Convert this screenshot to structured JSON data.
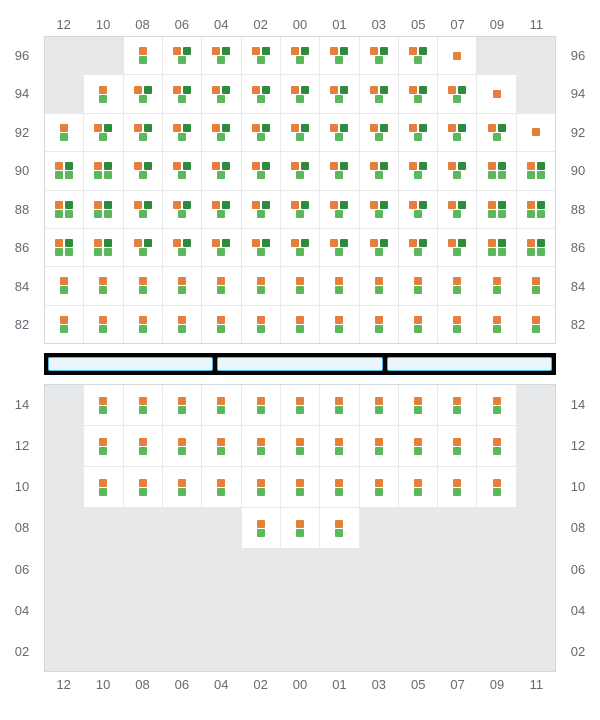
{
  "type": "seating-grid",
  "background_color": "#ffffff",
  "empty_cell_color": "#e7e8e9",
  "filled_cell_color": "#ffffff",
  "grid_border_color": "#d4d9de",
  "cell_border_color": "#e8eaec",
  "tick_color": "#636b72",
  "tick_fontsize": 13,
  "glyph": {
    "square_size": 8,
    "colors": {
      "orange": "#e67e3c",
      "dark_green": "#2e8b3d",
      "light_green": "#5cb85c"
    }
  },
  "columns": [
    "12",
    "10",
    "08",
    "06",
    "04",
    "02",
    "00",
    "01",
    "03",
    "05",
    "07",
    "09",
    "11"
  ],
  "upper": {
    "rows": [
      "96",
      "94",
      "92",
      "90",
      "88",
      "86",
      "84",
      "82"
    ],
    "cells": [
      [
        null,
        null,
        {
          "t": [
            "o"
          ],
          "b": [
            "l"
          ]
        },
        {
          "t": [
            "o",
            "d"
          ],
          "b": [
            "l"
          ]
        },
        {
          "t": [
            "o",
            "d"
          ],
          "b": [
            "l"
          ]
        },
        {
          "t": [
            "o",
            "d"
          ],
          "b": [
            "l"
          ]
        },
        {
          "t": [
            "o",
            "d"
          ],
          "b": [
            "l"
          ]
        },
        {
          "t": [
            "o",
            "d"
          ],
          "b": [
            "l"
          ]
        },
        {
          "t": [
            "o",
            "d"
          ],
          "b": [
            "l"
          ]
        },
        {
          "t": [
            "o",
            "d"
          ],
          "b": [
            "l"
          ]
        },
        {
          "t": [
            "o"
          ],
          "b": []
        },
        null,
        null
      ],
      [
        null,
        {
          "t": [
            "o"
          ],
          "b": [
            "l"
          ]
        },
        {
          "t": [
            "o",
            "d"
          ],
          "b": [
            "l"
          ]
        },
        {
          "t": [
            "o",
            "d"
          ],
          "b": [
            "l"
          ]
        },
        {
          "t": [
            "o",
            "d"
          ],
          "b": [
            "l"
          ]
        },
        {
          "t": [
            "o",
            "d"
          ],
          "b": [
            "l"
          ]
        },
        {
          "t": [
            "o",
            "d"
          ],
          "b": [
            "l"
          ]
        },
        {
          "t": [
            "o",
            "d"
          ],
          "b": [
            "l"
          ]
        },
        {
          "t": [
            "o",
            "d"
          ],
          "b": [
            "l"
          ]
        },
        {
          "t": [
            "o",
            "d"
          ],
          "b": [
            "l"
          ]
        },
        {
          "t": [
            "o",
            "d"
          ],
          "b": [
            "l"
          ]
        },
        {
          "t": [
            "o"
          ],
          "b": []
        },
        null
      ],
      [
        {
          "t": [
            "o"
          ],
          "b": [
            "l"
          ]
        },
        {
          "t": [
            "o",
            "d"
          ],
          "b": [
            "l"
          ]
        },
        {
          "t": [
            "o",
            "d"
          ],
          "b": [
            "l"
          ]
        },
        {
          "t": [
            "o",
            "d"
          ],
          "b": [
            "l"
          ]
        },
        {
          "t": [
            "o",
            "d"
          ],
          "b": [
            "l"
          ]
        },
        {
          "t": [
            "o",
            "d"
          ],
          "b": [
            "l"
          ]
        },
        {
          "t": [
            "o",
            "d"
          ],
          "b": [
            "l"
          ]
        },
        {
          "t": [
            "o",
            "d"
          ],
          "b": [
            "l"
          ]
        },
        {
          "t": [
            "o",
            "d"
          ],
          "b": [
            "l"
          ]
        },
        {
          "t": [
            "o",
            "d"
          ],
          "b": [
            "l"
          ]
        },
        {
          "t": [
            "o",
            "d"
          ],
          "b": [
            "l"
          ]
        },
        {
          "t": [
            "o",
            "d"
          ],
          "b": [
            "l"
          ]
        },
        {
          "t": [
            "o"
          ],
          "b": []
        }
      ],
      [
        {
          "t": [
            "o",
            "d"
          ],
          "b": [
            "l",
            "l"
          ]
        },
        {
          "t": [
            "o",
            "d"
          ],
          "b": [
            "l",
            "l"
          ]
        },
        {
          "t": [
            "o",
            "d"
          ],
          "b": [
            "l"
          ]
        },
        {
          "t": [
            "o",
            "d"
          ],
          "b": [
            "l"
          ]
        },
        {
          "t": [
            "o",
            "d"
          ],
          "b": [
            "l"
          ]
        },
        {
          "t": [
            "o",
            "d"
          ],
          "b": [
            "l"
          ]
        },
        {
          "t": [
            "o",
            "d"
          ],
          "b": [
            "l"
          ]
        },
        {
          "t": [
            "o",
            "d"
          ],
          "b": [
            "l"
          ]
        },
        {
          "t": [
            "o",
            "d"
          ],
          "b": [
            "l"
          ]
        },
        {
          "t": [
            "o",
            "d"
          ],
          "b": [
            "l"
          ]
        },
        {
          "t": [
            "o",
            "d"
          ],
          "b": [
            "l"
          ]
        },
        {
          "t": [
            "o",
            "d"
          ],
          "b": [
            "l",
            "l"
          ]
        },
        {
          "t": [
            "o",
            "d"
          ],
          "b": [
            "l",
            "l"
          ]
        }
      ],
      [
        {
          "t": [
            "o",
            "d"
          ],
          "b": [
            "l",
            "l"
          ]
        },
        {
          "t": [
            "o",
            "d"
          ],
          "b": [
            "l",
            "l"
          ]
        },
        {
          "t": [
            "o",
            "d"
          ],
          "b": [
            "l"
          ]
        },
        {
          "t": [
            "o",
            "d"
          ],
          "b": [
            "l"
          ]
        },
        {
          "t": [
            "o",
            "d"
          ],
          "b": [
            "l"
          ]
        },
        {
          "t": [
            "o",
            "d"
          ],
          "b": [
            "l"
          ]
        },
        {
          "t": [
            "o",
            "d"
          ],
          "b": [
            "l"
          ]
        },
        {
          "t": [
            "o",
            "d"
          ],
          "b": [
            "l"
          ]
        },
        {
          "t": [
            "o",
            "d"
          ],
          "b": [
            "l"
          ]
        },
        {
          "t": [
            "o",
            "d"
          ],
          "b": [
            "l"
          ]
        },
        {
          "t": [
            "o",
            "d"
          ],
          "b": [
            "l"
          ]
        },
        {
          "t": [
            "o",
            "d"
          ],
          "b": [
            "l",
            "l"
          ]
        },
        {
          "t": [
            "o",
            "d"
          ],
          "b": [
            "l",
            "l"
          ]
        }
      ],
      [
        {
          "t": [
            "o",
            "d"
          ],
          "b": [
            "l",
            "l"
          ]
        },
        {
          "t": [
            "o",
            "d"
          ],
          "b": [
            "l",
            "l"
          ]
        },
        {
          "t": [
            "o",
            "d"
          ],
          "b": [
            "l"
          ]
        },
        {
          "t": [
            "o",
            "d"
          ],
          "b": [
            "l"
          ]
        },
        {
          "t": [
            "o",
            "d"
          ],
          "b": [
            "l"
          ]
        },
        {
          "t": [
            "o",
            "d"
          ],
          "b": [
            "l"
          ]
        },
        {
          "t": [
            "o",
            "d"
          ],
          "b": [
            "l"
          ]
        },
        {
          "t": [
            "o",
            "d"
          ],
          "b": [
            "l"
          ]
        },
        {
          "t": [
            "o",
            "d"
          ],
          "b": [
            "l"
          ]
        },
        {
          "t": [
            "o",
            "d"
          ],
          "b": [
            "l"
          ]
        },
        {
          "t": [
            "o",
            "d"
          ],
          "b": [
            "l"
          ]
        },
        {
          "t": [
            "o",
            "d"
          ],
          "b": [
            "l",
            "l"
          ]
        },
        {
          "t": [
            "o",
            "d"
          ],
          "b": [
            "l",
            "l"
          ]
        }
      ],
      [
        {
          "t": [
            "o"
          ],
          "b": [
            "l"
          ]
        },
        {
          "t": [
            "o"
          ],
          "b": [
            "l"
          ]
        },
        {
          "t": [
            "o"
          ],
          "b": [
            "l"
          ]
        },
        {
          "t": [
            "o"
          ],
          "b": [
            "l"
          ]
        },
        {
          "t": [
            "o"
          ],
          "b": [
            "l"
          ]
        },
        {
          "t": [
            "o"
          ],
          "b": [
            "l"
          ]
        },
        {
          "t": [
            "o"
          ],
          "b": [
            "l"
          ]
        },
        {
          "t": [
            "o"
          ],
          "b": [
            "l"
          ]
        },
        {
          "t": [
            "o"
          ],
          "b": [
            "l"
          ]
        },
        {
          "t": [
            "o"
          ],
          "b": [
            "l"
          ]
        },
        {
          "t": [
            "o"
          ],
          "b": [
            "l"
          ]
        },
        {
          "t": [
            "o"
          ],
          "b": [
            "l"
          ]
        },
        {
          "t": [
            "o"
          ],
          "b": [
            "l"
          ]
        }
      ],
      [
        {
          "t": [
            "o"
          ],
          "b": [
            "l"
          ]
        },
        {
          "t": [
            "o"
          ],
          "b": [
            "l"
          ]
        },
        {
          "t": [
            "o"
          ],
          "b": [
            "l"
          ]
        },
        {
          "t": [
            "o"
          ],
          "b": [
            "l"
          ]
        },
        {
          "t": [
            "o"
          ],
          "b": [
            "l"
          ]
        },
        {
          "t": [
            "o"
          ],
          "b": [
            "l"
          ]
        },
        {
          "t": [
            "o"
          ],
          "b": [
            "l"
          ]
        },
        {
          "t": [
            "o"
          ],
          "b": [
            "l"
          ]
        },
        {
          "t": [
            "o"
          ],
          "b": [
            "l"
          ]
        },
        {
          "t": [
            "o"
          ],
          "b": [
            "l"
          ]
        },
        {
          "t": [
            "o"
          ],
          "b": [
            "l"
          ]
        },
        {
          "t": [
            "o"
          ],
          "b": [
            "l"
          ]
        },
        {
          "t": [
            "o"
          ],
          "b": [
            "l"
          ]
        }
      ]
    ]
  },
  "divider": {
    "segments": 3,
    "bg": "#000000",
    "seg_bg": "#eaf6fb",
    "seg_border": "#4db8e8"
  },
  "lower": {
    "rows": [
      "14",
      "12",
      "10",
      "08",
      "06",
      "04",
      "02"
    ],
    "cells": [
      [
        null,
        {
          "t": [
            "o"
          ],
          "b": [
            "l"
          ]
        },
        {
          "t": [
            "o"
          ],
          "b": [
            "l"
          ]
        },
        {
          "t": [
            "o"
          ],
          "b": [
            "l"
          ]
        },
        {
          "t": [
            "o"
          ],
          "b": [
            "l"
          ]
        },
        {
          "t": [
            "o"
          ],
          "b": [
            "l"
          ]
        },
        {
          "t": [
            "o"
          ],
          "b": [
            "l"
          ]
        },
        {
          "t": [
            "o"
          ],
          "b": [
            "l"
          ]
        },
        {
          "t": [
            "o"
          ],
          "b": [
            "l"
          ]
        },
        {
          "t": [
            "o"
          ],
          "b": [
            "l"
          ]
        },
        {
          "t": [
            "o"
          ],
          "b": [
            "l"
          ]
        },
        {
          "t": [
            "o"
          ],
          "b": [
            "l"
          ]
        },
        null
      ],
      [
        null,
        {
          "t": [
            "o"
          ],
          "b": [
            "l"
          ]
        },
        {
          "t": [
            "o"
          ],
          "b": [
            "l"
          ]
        },
        {
          "t": [
            "o"
          ],
          "b": [
            "l"
          ]
        },
        {
          "t": [
            "o"
          ],
          "b": [
            "l"
          ]
        },
        {
          "t": [
            "o"
          ],
          "b": [
            "l"
          ]
        },
        {
          "t": [
            "o"
          ],
          "b": [
            "l"
          ]
        },
        {
          "t": [
            "o"
          ],
          "b": [
            "l"
          ]
        },
        {
          "t": [
            "o"
          ],
          "b": [
            "l"
          ]
        },
        {
          "t": [
            "o"
          ],
          "b": [
            "l"
          ]
        },
        {
          "t": [
            "o"
          ],
          "b": [
            "l"
          ]
        },
        {
          "t": [
            "o"
          ],
          "b": [
            "l"
          ]
        },
        null
      ],
      [
        null,
        {
          "t": [
            "o"
          ],
          "b": [
            "l"
          ]
        },
        {
          "t": [
            "o"
          ],
          "b": [
            "l"
          ]
        },
        {
          "t": [
            "o"
          ],
          "b": [
            "l"
          ]
        },
        {
          "t": [
            "o"
          ],
          "b": [
            "l"
          ]
        },
        {
          "t": [
            "o"
          ],
          "b": [
            "l"
          ]
        },
        {
          "t": [
            "o"
          ],
          "b": [
            "l"
          ]
        },
        {
          "t": [
            "o"
          ],
          "b": [
            "l"
          ]
        },
        {
          "t": [
            "o"
          ],
          "b": [
            "l"
          ]
        },
        {
          "t": [
            "o"
          ],
          "b": [
            "l"
          ]
        },
        {
          "t": [
            "o"
          ],
          "b": [
            "l"
          ]
        },
        {
          "t": [
            "o"
          ],
          "b": [
            "l"
          ]
        },
        null
      ],
      [
        null,
        null,
        null,
        null,
        null,
        {
          "t": [
            "o"
          ],
          "b": [
            "l"
          ]
        },
        {
          "t": [
            "o"
          ],
          "b": [
            "l"
          ]
        },
        {
          "t": [
            "o"
          ],
          "b": [
            "l"
          ]
        },
        null,
        null,
        null,
        null,
        null
      ],
      [
        null,
        null,
        null,
        null,
        null,
        null,
        null,
        null,
        null,
        null,
        null,
        null,
        null
      ],
      [
        null,
        null,
        null,
        null,
        null,
        null,
        null,
        null,
        null,
        null,
        null,
        null,
        null
      ],
      [
        null,
        null,
        null,
        null,
        null,
        null,
        null,
        null,
        null,
        null,
        null,
        null,
        null
      ]
    ]
  }
}
